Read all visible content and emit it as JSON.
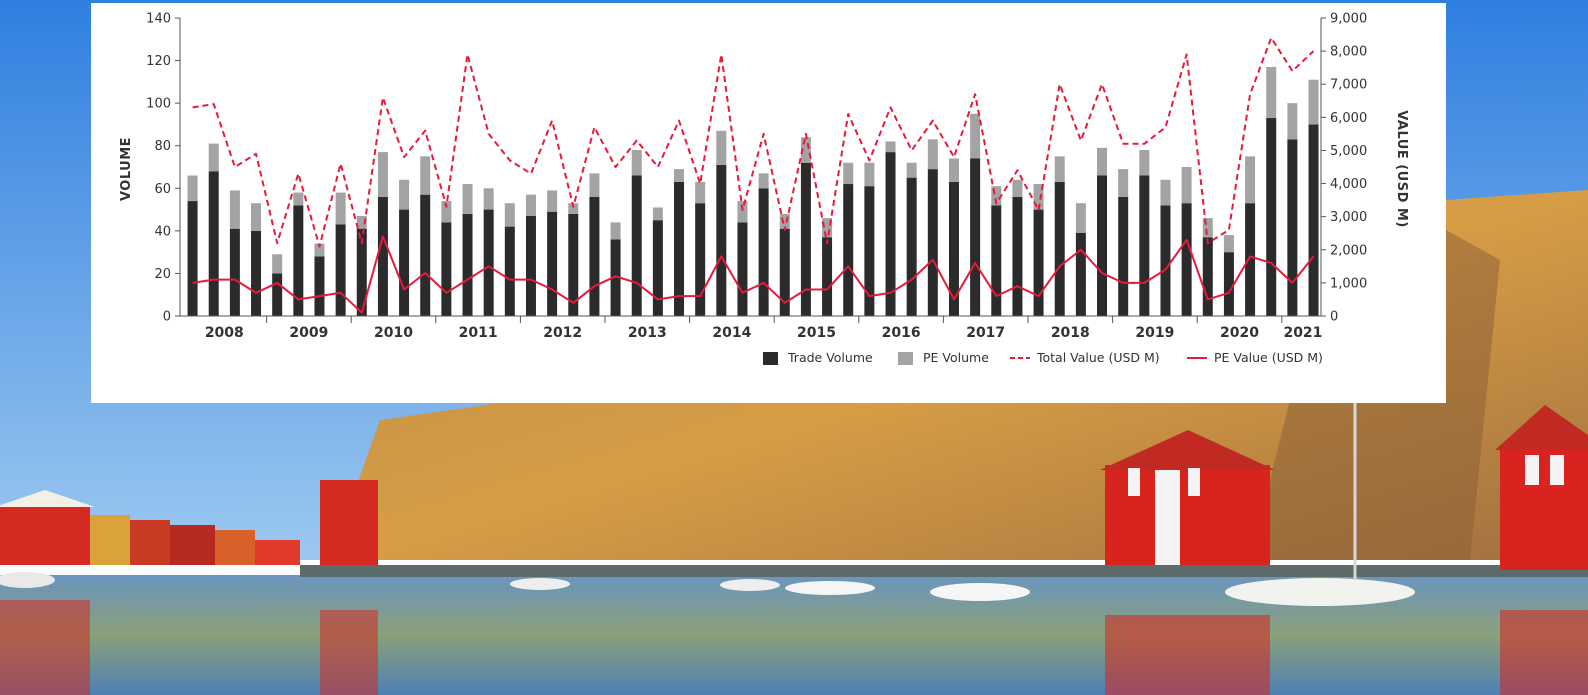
{
  "colors": {
    "trade_volume": "#2b2b2b",
    "pe_volume": "#a3a3a3",
    "total_value": "#e8193a",
    "pe_value": "#e8193a"
  },
  "background": {
    "description_icon": "harbor-photo",
    "sky": "#3f8de0",
    "rock": "#c8913f",
    "water": "#4a7fb0",
    "boathouse": "#d8231e"
  },
  "chart_data": {
    "type": "bar",
    "stacked": true,
    "xlabel": "",
    "ylabel": "VOLUME",
    "y2label": "VALUE (USD M)",
    "ylim": [
      0,
      140
    ],
    "y2lim": [
      0,
      9000
    ],
    "yticks": [
      0,
      20,
      40,
      60,
      80,
      100,
      120,
      140
    ],
    "y2ticks": [
      0,
      1000,
      2000,
      3000,
      4000,
      5000,
      6000,
      7000,
      8000,
      9000
    ],
    "y2tick_labels": [
      "0",
      "1,000",
      "2,000",
      "3,000",
      "4,000",
      "5,000",
      "6,000",
      "7,000",
      "8,000",
      "9,000"
    ],
    "years": [
      {
        "label": "2008",
        "quarters": 4
      },
      {
        "label": "2009",
        "quarters": 4
      },
      {
        "label": "2010",
        "quarters": 4
      },
      {
        "label": "2011",
        "quarters": 4
      },
      {
        "label": "2012",
        "quarters": 4
      },
      {
        "label": "2013",
        "quarters": 4
      },
      {
        "label": "2014",
        "quarters": 4
      },
      {
        "label": "2015",
        "quarters": 4
      },
      {
        "label": "2016",
        "quarters": 4
      },
      {
        "label": "2017",
        "quarters": 4
      },
      {
        "label": "2018",
        "quarters": 4
      },
      {
        "label": "2019",
        "quarters": 4
      },
      {
        "label": "2020",
        "quarters": 4
      },
      {
        "label": "2021",
        "quarters": 2
      }
    ],
    "series": [
      {
        "name": "Trade Volume",
        "kind": "bar",
        "axis": "left",
        "values": [
          54,
          68,
          41,
          40,
          20,
          52,
          28,
          43,
          41,
          56,
          50,
          57,
          44,
          48,
          50,
          42,
          47,
          49,
          48,
          56,
          36,
          66,
          45,
          63,
          53,
          71,
          44,
          60,
          41,
          72,
          37,
          62,
          61,
          77,
          65,
          69,
          63,
          74,
          52,
          56,
          50,
          63,
          39,
          66,
          56,
          66,
          52,
          53,
          37,
          30,
          53,
          93,
          83,
          90
        ]
      },
      {
        "name": "PE Volume",
        "kind": "bar",
        "axis": "left",
        "values": [
          12,
          13,
          18,
          13,
          9,
          6,
          6,
          15,
          6,
          21,
          14,
          18,
          10,
          14,
          10,
          11,
          10,
          10,
          5,
          11,
          8,
          12,
          6,
          6,
          10,
          16,
          10,
          7,
          7,
          12,
          9,
          10,
          11,
          5,
          7,
          14,
          11,
          21,
          9,
          8,
          12,
          12,
          14,
          13,
          13,
          12,
          12,
          17,
          9,
          8,
          22,
          24,
          17,
          21
        ]
      },
      {
        "name": "Total Value (USD M)",
        "kind": "line",
        "dash": true,
        "axis": "right",
        "values": [
          6300,
          6400,
          4500,
          4900,
          2200,
          4300,
          2100,
          4600,
          2200,
          6600,
          4800,
          5600,
          3300,
          7900,
          5500,
          4700,
          4300,
          5900,
          3300,
          5700,
          4500,
          5300,
          4500,
          5900,
          4000,
          7900,
          3200,
          5500,
          2600,
          5500,
          2200,
          6100,
          4700,
          6300,
          5000,
          5900,
          4800,
          6700,
          3400,
          4400,
          3200,
          7000,
          5300,
          7000,
          5200,
          5200,
          5700,
          7900,
          2200,
          2600,
          6700,
          8400,
          7400,
          8000
        ]
      },
      {
        "name": "PE Value (USD M)",
        "kind": "line",
        "dash": false,
        "axis": "right",
        "values": [
          1000,
          1100,
          1100,
          700,
          1000,
          500,
          600,
          700,
          100,
          2400,
          800,
          1300,
          700,
          1100,
          1500,
          1100,
          1100,
          800,
          400,
          900,
          1200,
          1000,
          500,
          600,
          600,
          1800,
          700,
          1000,
          400,
          800,
          800,
          1500,
          600,
          700,
          1100,
          1700,
          500,
          1600,
          600,
          900,
          600,
          1500,
          2000,
          1300,
          1000,
          1000,
          1400,
          2300,
          500,
          700,
          1800,
          1600,
          1000,
          1800
        ]
      }
    ],
    "legend": [
      {
        "label": "Trade Volume",
        "type": "square",
        "color": "#2b2b2b"
      },
      {
        "label": "PE Volume",
        "type": "square",
        "color": "#a3a3a3"
      },
      {
        "label": "Total Value (USD M)",
        "type": "dash",
        "color": "#e8193a"
      },
      {
        "label": "PE Value (USD M)",
        "type": "line",
        "color": "#e8193a"
      }
    ],
    "legend_placement": "bottom-right",
    "grid": false
  }
}
